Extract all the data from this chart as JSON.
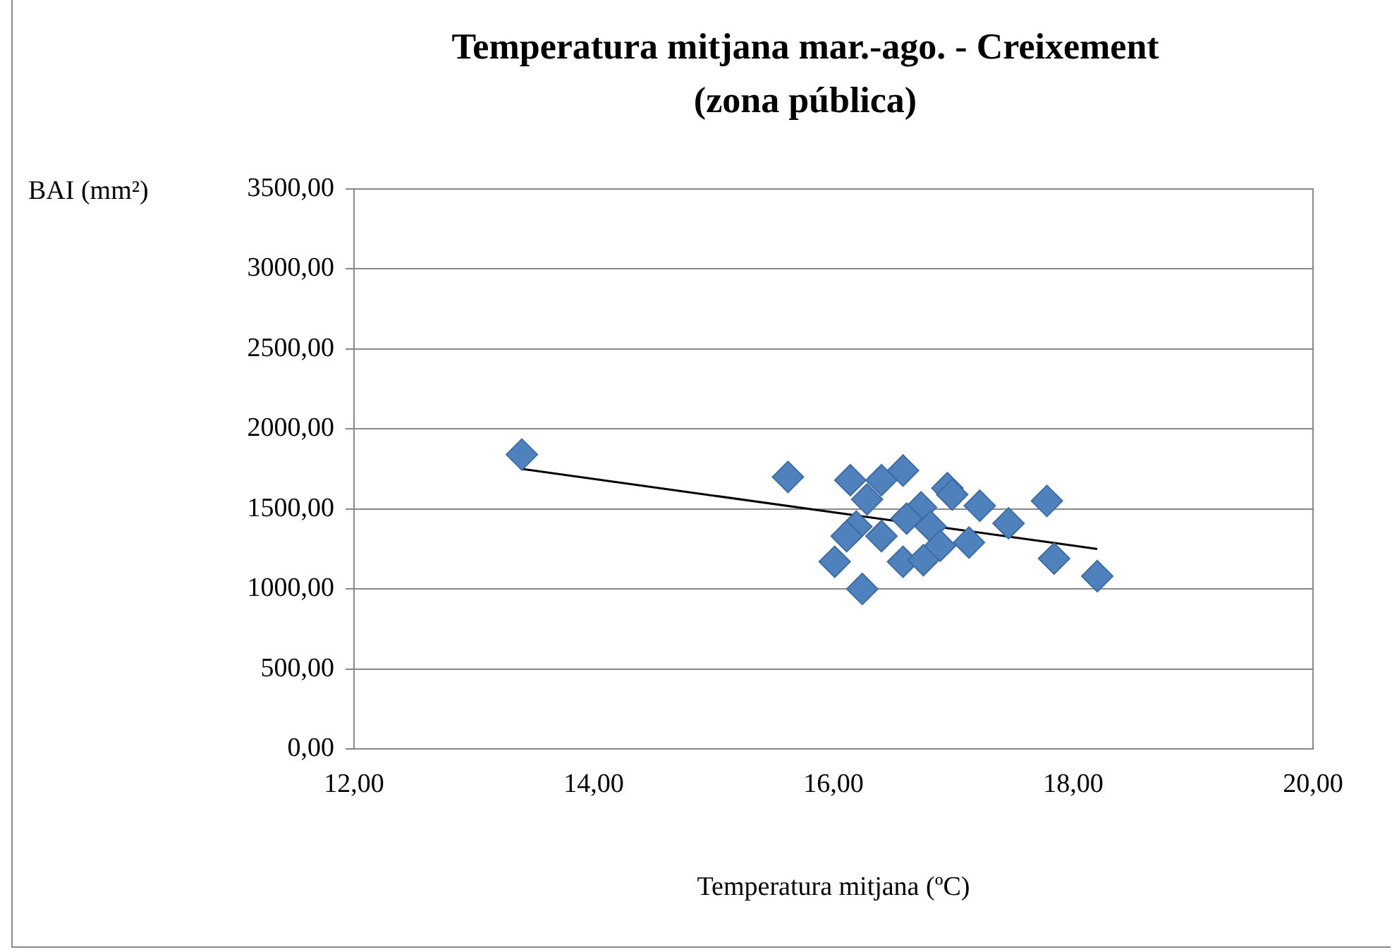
{
  "chart_data": {
    "type": "scatter",
    "title": "Temperatura mitjana mar.-ago. - Creixement\n(zona pública)",
    "xlabel": "Temperatura mitjana (ºC)",
    "ylabel": "BAI (mm²)",
    "series": [
      {
        "type": "scatter",
        "color": "#4f81bd",
        "marker": "diamond",
        "x": [
          13.4,
          15.62,
          16.14,
          16.4,
          16.58,
          16.28,
          16.95,
          16.99,
          17.22,
          17.78,
          16.73,
          16.61,
          17.46,
          16.19,
          16.11,
          16.4,
          16.81,
          17.13,
          16.89,
          16.01,
          16.58,
          16.75,
          17.84,
          18.2,
          16.24
        ],
        "values": [
          1840,
          1700,
          1680,
          1680,
          1740,
          1560,
          1630,
          1590,
          1520,
          1550,
          1510,
          1440,
          1410,
          1390,
          1330,
          1330,
          1390,
          1290,
          1270,
          1170,
          1170,
          1180,
          1190,
          1080,
          1000
        ]
      },
      {
        "type": "line",
        "color": "#000000",
        "marker": "none",
        "x": [
          13.4,
          18.2
        ],
        "values": [
          1750,
          1250
        ]
      }
    ],
    "xlim": [
      12,
      20
    ],
    "xticks": [
      {
        "value": 12,
        "label": "12,00"
      },
      {
        "value": 14,
        "label": "14,00"
      },
      {
        "value": 16,
        "label": "16,00"
      },
      {
        "value": 18,
        "label": "18,00"
      },
      {
        "value": 20,
        "label": "20,00"
      }
    ],
    "ylim": [
      0,
      3500
    ],
    "yticks": [
      {
        "value": 0,
        "label": "0,00"
      },
      {
        "value": 500,
        "label": "500,00"
      },
      {
        "value": 1000,
        "label": "1000,00"
      },
      {
        "value": 1500,
        "label": "1500,00"
      },
      {
        "value": 2000,
        "label": "2000,00"
      },
      {
        "value": 2500,
        "label": "2500,00"
      },
      {
        "value": 3000,
        "label": "3000,00"
      },
      {
        "value": 3500,
        "label": "3500,00"
      }
    ],
    "grid": "y"
  }
}
